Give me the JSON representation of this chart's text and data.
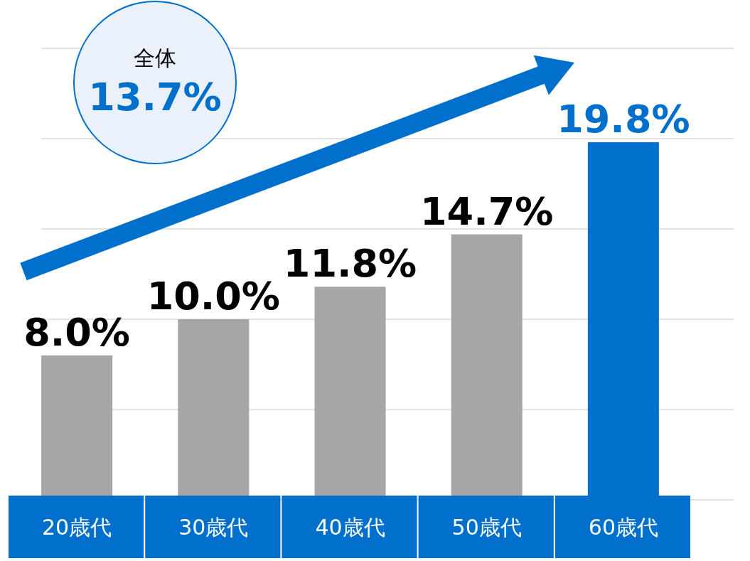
{
  "chart_data": {
    "type": "bar",
    "categories": [
      "20歳代",
      "30歳代",
      "40歳代",
      "50歳代",
      "60歳代"
    ],
    "values": [
      8.0,
      10.0,
      11.8,
      14.7,
      19.8
    ],
    "value_labels": [
      "8.0%",
      "10.0%",
      "11.8%",
      "14.7%",
      "19.8%"
    ],
    "colors": [
      "#a6a6a6",
      "#a6a6a6",
      "#a6a6a6",
      "#a6a6a6",
      "#0070cc"
    ],
    "ylim": [
      0,
      25
    ],
    "yticks": [
      {
        "value": 0,
        "label": null
      },
      {
        "value": 5,
        "label": null
      },
      {
        "value": 10,
        "label": null
      },
      {
        "value": 15,
        "label": null
      },
      {
        "value": 20,
        "label": null
      },
      {
        "value": 25,
        "label": null
      }
    ],
    "grid": "y",
    "tick_labels": "x",
    "annotations": [
      "全体",
      "13.7%"
    ]
  }
}
